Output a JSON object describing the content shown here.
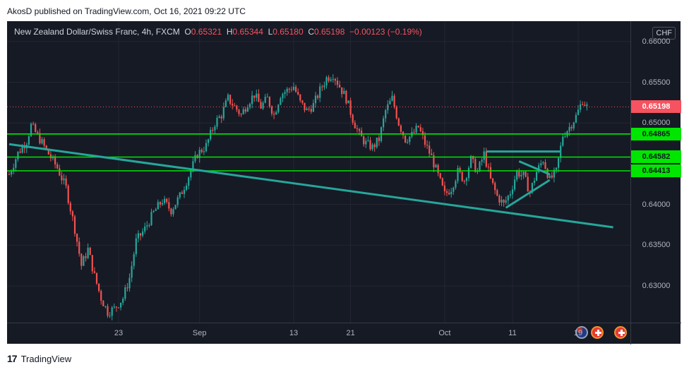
{
  "header": {
    "publisher_line": "AkosD published on TradingView.com, Oct 16, 2021 09:22 UTC"
  },
  "legend": {
    "title": "New Zealand Dollar/Swiss Franc, 4h, FXCM",
    "o_key": "O",
    "o_val": "0.65321",
    "h_key": "H",
    "h_val": "0.65344",
    "l_key": "L",
    "l_val": "0.65180",
    "c_key": "C",
    "c_val": "0.65198",
    "change": "−0.00123 (−0.19%)"
  },
  "currency_tag": "CHF",
  "footer": {
    "logo_mark": "17",
    "brand": "TradingView"
  },
  "colors": {
    "up": "#26a69a",
    "down": "#ef5350",
    "support": "#00e600",
    "trend": "#26a69a",
    "price_tag": "#f7525f"
  },
  "chart_data": {
    "type": "candlestick",
    "ylim": [
      0.6255,
      0.6625
    ],
    "y_ticks": [
      "0.66000",
      "0.65500",
      "0.65000",
      "0.64000",
      "0.63500",
      "0.63000"
    ],
    "x_ticks": [
      "23",
      "Sep",
      "13",
      "21",
      "Oct",
      "11",
      "19"
    ],
    "price_labels": [
      {
        "value": 0.65198,
        "label": "0.65198",
        "style": "last"
      },
      {
        "value": 0.64865,
        "label": "0.64865",
        "style": "level"
      },
      {
        "value": 0.64582,
        "label": "0.64582",
        "style": "level"
      },
      {
        "value": 0.64413,
        "label": "0.64413",
        "style": "level"
      }
    ],
    "horizontal_levels": [
      0.64865,
      0.64582,
      0.64413
    ],
    "trend_lines": [
      {
        "from": [
          0,
          0.6474
        ],
        "to": [
          276,
          0.6372
        ]
      },
      {
        "from": [
          218,
          0.6465
        ],
        "to": [
          252,
          0.6465
        ]
      },
      {
        "from": [
          227,
          0.6396
        ],
        "to": [
          247,
          0.643
        ]
      },
      {
        "from": [
          233,
          0.6453
        ],
        "to": [
          247,
          0.6437
        ]
      }
    ],
    "x_tick_positions": [
      50,
      87,
      130,
      156,
      199,
      230,
      260
    ],
    "price_path": [
      [
        0,
        0.6437
      ],
      [
        4,
        0.6463
      ],
      [
        8,
        0.6478
      ],
      [
        10,
        0.6497
      ],
      [
        14,
        0.648
      ],
      [
        18,
        0.6462
      ],
      [
        22,
        0.6445
      ],
      [
        26,
        0.642
      ],
      [
        30,
        0.637
      ],
      [
        33,
        0.6325
      ],
      [
        36,
        0.6345
      ],
      [
        39,
        0.6312
      ],
      [
        42,
        0.6285
      ],
      [
        45,
        0.6268
      ],
      [
        48,
        0.6272
      ],
      [
        52,
        0.6285
      ],
      [
        55,
        0.631
      ],
      [
        58,
        0.6355
      ],
      [
        62,
        0.637
      ],
      [
        66,
        0.639
      ],
      [
        70,
        0.6405
      ],
      [
        74,
        0.6393
      ],
      [
        78,
        0.641
      ],
      [
        82,
        0.6435
      ],
      [
        86,
        0.6462
      ],
      [
        90,
        0.6472
      ],
      [
        94,
        0.65
      ],
      [
        97,
        0.651
      ],
      [
        100,
        0.653
      ],
      [
        103,
        0.652
      ],
      [
        106,
        0.651
      ],
      [
        109,
        0.6525
      ],
      [
        112,
        0.6535
      ],
      [
        115,
        0.652
      ],
      [
        118,
        0.653
      ],
      [
        121,
        0.651
      ],
      [
        124,
        0.6535
      ],
      [
        127,
        0.654
      ],
      [
        130,
        0.6545
      ],
      [
        133,
        0.6525
      ],
      [
        136,
        0.6515
      ],
      [
        139,
        0.6522
      ],
      [
        142,
        0.654
      ],
      [
        145,
        0.6555
      ],
      [
        148,
        0.656
      ],
      [
        151,
        0.6545
      ],
      [
        154,
        0.653
      ],
      [
        157,
        0.6505
      ],
      [
        160,
        0.6485
      ],
      [
        163,
        0.6475
      ],
      [
        166,
        0.647
      ],
      [
        169,
        0.648
      ],
      [
        172,
        0.6515
      ],
      [
        175,
        0.653
      ],
      [
        178,
        0.65
      ],
      [
        181,
        0.648
      ],
      [
        184,
        0.6485
      ],
      [
        187,
        0.6495
      ],
      [
        190,
        0.6475
      ],
      [
        193,
        0.6458
      ],
      [
        196,
        0.6435
      ],
      [
        199,
        0.6412
      ],
      [
        202,
        0.642
      ],
      [
        205,
        0.644
      ],
      [
        208,
        0.643
      ],
      [
        211,
        0.6455
      ],
      [
        214,
        0.644
      ],
      [
        217,
        0.6462
      ],
      [
        220,
        0.643
      ],
      [
        223,
        0.641
      ],
      [
        226,
        0.64
      ],
      [
        229,
        0.6415
      ],
      [
        232,
        0.644
      ],
      [
        235,
        0.6435
      ],
      [
        238,
        0.6415
      ],
      [
        241,
        0.644
      ],
      [
        244,
        0.6455
      ],
      [
        247,
        0.643
      ],
      [
        250,
        0.644
      ],
      [
        253,
        0.6485
      ],
      [
        256,
        0.6495
      ],
      [
        259,
        0.6508
      ],
      [
        262,
        0.6528
      ],
      [
        264,
        0.652
      ]
    ]
  }
}
